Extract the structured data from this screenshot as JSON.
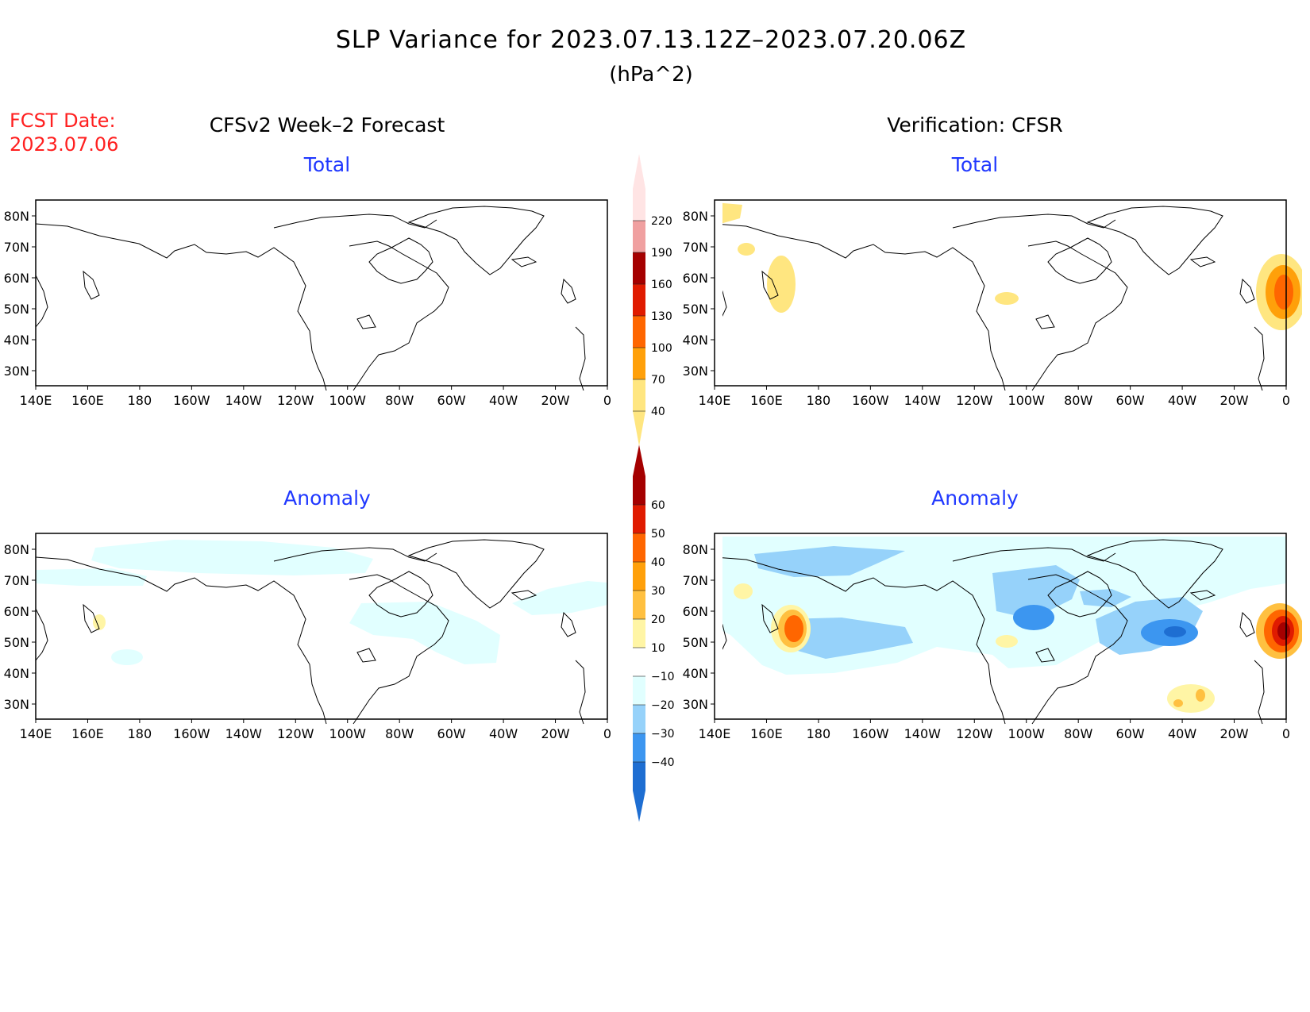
{
  "title": "SLP Variance for 2023.07.13.12Z–2023.07.20.06Z",
  "units": "(hPa^2)",
  "fcst_date_label": "FCST Date:",
  "fcst_date_value": "2023.07.06",
  "columns": {
    "left": "CFSv2 Week–2 Forecast",
    "right": "Verification: CFSR"
  },
  "panels": [
    {
      "id": "fcst-total",
      "label": "Total"
    },
    {
      "id": "verif-total",
      "label": "Total"
    },
    {
      "id": "fcst-anomaly",
      "label": "Anomaly"
    },
    {
      "id": "verif-anomaly",
      "label": "Anomaly"
    }
  ],
  "lat_labels": [
    "80N",
    "70N",
    "60N",
    "50N",
    "40N",
    "30N"
  ],
  "lon_labels": [
    "140E",
    "160E",
    "180",
    "160W",
    "140W",
    "120W",
    "100W",
    "80W",
    "60W",
    "40W",
    "20W",
    "0"
  ],
  "colorbars": {
    "total": {
      "labels": [
        "40",
        "70",
        "100",
        "130",
        "160",
        "190",
        "220"
      ],
      "colors": [
        "#ffe680",
        "#ffa00a",
        "#ff6600",
        "#e01b00",
        "#a50000",
        "#f0a0a0",
        "#ffe4e4"
      ]
    },
    "anomaly": {
      "labels": [
        "60",
        "50",
        "40",
        "30",
        "20",
        "10",
        "−10",
        "−20",
        "−30",
        "−40"
      ],
      "colors": [
        "#a50000",
        "#e01b00",
        "#ff6600",
        "#ffa00a",
        "#ffc040",
        "#fff5a5",
        "#ffffff",
        "#e1ffff",
        "#96d2fa",
        "#3c96f0",
        "#1e6ed2"
      ]
    }
  },
  "colors": {
    "title": "#000000",
    "fcst_date": "#ff2020",
    "panel_label": "#2038ff"
  }
}
